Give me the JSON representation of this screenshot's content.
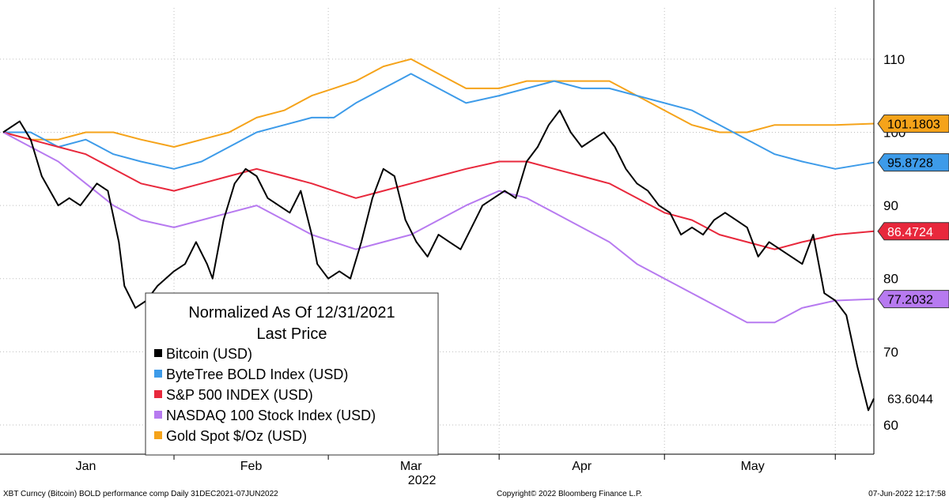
{
  "chart_data": {
    "type": "line",
    "legend": {
      "title_line1": "Normalized As Of 12/31/2021",
      "title_line2": "Last Price",
      "placement": "bottom-left"
    },
    "x_axis": {
      "months": [
        "Jan",
        "Feb",
        "Mar",
        "Apr",
        "May"
      ],
      "year_label": "2022",
      "range": [
        "2021-12-31",
        "2022-06-07"
      ]
    },
    "y_axis": {
      "ticks": [
        60,
        70,
        80,
        90,
        100,
        110
      ],
      "range": [
        56,
        117
      ]
    },
    "grid": true,
    "series": [
      {
        "name": "Bitcoin (USD)",
        "color": "#000000",
        "last_label": "63.6044",
        "points": [
          [
            "2021-12-31",
            100
          ],
          [
            "2022-01-03",
            101.5
          ],
          [
            "2022-01-05",
            99
          ],
          [
            "2022-01-07",
            94
          ],
          [
            "2022-01-10",
            90
          ],
          [
            "2022-01-12",
            91
          ],
          [
            "2022-01-14",
            90
          ],
          [
            "2022-01-17",
            93
          ],
          [
            "2022-01-19",
            92
          ],
          [
            "2022-01-21",
            85
          ],
          [
            "2022-01-22",
            79
          ],
          [
            "2022-01-24",
            76
          ],
          [
            "2022-01-26",
            77
          ],
          [
            "2022-01-28",
            79
          ],
          [
            "2022-01-31",
            81
          ],
          [
            "2022-02-02",
            82
          ],
          [
            "2022-02-04",
            85
          ],
          [
            "2022-02-06",
            82
          ],
          [
            "2022-02-07",
            80
          ],
          [
            "2022-02-09",
            88
          ],
          [
            "2022-02-11",
            93
          ],
          [
            "2022-02-13",
            95
          ],
          [
            "2022-02-15",
            94
          ],
          [
            "2022-02-17",
            91
          ],
          [
            "2022-02-19",
            90
          ],
          [
            "2022-02-21",
            89
          ],
          [
            "2022-02-23",
            92
          ],
          [
            "2022-02-25",
            86
          ],
          [
            "2022-02-26",
            82
          ],
          [
            "2022-02-28",
            80
          ],
          [
            "2022-03-02",
            81
          ],
          [
            "2022-03-04",
            80
          ],
          [
            "2022-03-06",
            85
          ],
          [
            "2022-03-08",
            91
          ],
          [
            "2022-03-10",
            95
          ],
          [
            "2022-03-12",
            94
          ],
          [
            "2022-03-14",
            88
          ],
          [
            "2022-03-16",
            85
          ],
          [
            "2022-03-18",
            83
          ],
          [
            "2022-03-20",
            86
          ],
          [
            "2022-03-22",
            85
          ],
          [
            "2022-03-24",
            84
          ],
          [
            "2022-03-26",
            87
          ],
          [
            "2022-03-28",
            90
          ],
          [
            "2022-03-30",
            91
          ],
          [
            "2022-04-01",
            92
          ],
          [
            "2022-04-03",
            91
          ],
          [
            "2022-04-05",
            96
          ],
          [
            "2022-04-07",
            98
          ],
          [
            "2022-04-09",
            101
          ],
          [
            "2022-04-11",
            103
          ],
          [
            "2022-04-13",
            100
          ],
          [
            "2022-04-15",
            98
          ],
          [
            "2022-04-17",
            99
          ],
          [
            "2022-04-19",
            100
          ],
          [
            "2022-04-21",
            98
          ],
          [
            "2022-04-23",
            95
          ],
          [
            "2022-04-25",
            93
          ],
          [
            "2022-04-27",
            92
          ],
          [
            "2022-04-29",
            90
          ],
          [
            "2022-05-01",
            89
          ],
          [
            "2022-05-03",
            86
          ],
          [
            "2022-05-05",
            87
          ],
          [
            "2022-05-07",
            86
          ],
          [
            "2022-05-09",
            88
          ],
          [
            "2022-05-11",
            89
          ],
          [
            "2022-05-13",
            88
          ],
          [
            "2022-05-15",
            87
          ],
          [
            "2022-05-17",
            83
          ],
          [
            "2022-05-19",
            85
          ],
          [
            "2022-05-21",
            84
          ],
          [
            "2022-05-23",
            83
          ],
          [
            "2022-05-25",
            82
          ],
          [
            "2022-05-27",
            86
          ],
          [
            "2022-05-29",
            78
          ],
          [
            "2022-05-31",
            77
          ],
          [
            "2022-06-02",
            75
          ],
          [
            "2022-06-04",
            68
          ],
          [
            "2022-06-06",
            62
          ],
          [
            "2022-06-07",
            63.6044
          ]
        ]
      },
      {
        "name": "ByteTree BOLD Index (USD)",
        "color": "#3d9be9",
        "last_label": "95.8728",
        "points": [
          [
            "2021-12-31",
            100
          ],
          [
            "2022-01-05",
            100
          ],
          [
            "2022-01-10",
            98
          ],
          [
            "2022-01-15",
            99
          ],
          [
            "2022-01-20",
            97
          ],
          [
            "2022-01-25",
            96
          ],
          [
            "2022-01-31",
            95
          ],
          [
            "2022-02-05",
            96
          ],
          [
            "2022-02-10",
            98
          ],
          [
            "2022-02-15",
            100
          ],
          [
            "2022-02-20",
            101
          ],
          [
            "2022-02-25",
            102
          ],
          [
            "2022-03-01",
            102
          ],
          [
            "2022-03-05",
            104
          ],
          [
            "2022-03-10",
            106
          ],
          [
            "2022-03-15",
            108
          ],
          [
            "2022-03-20",
            106
          ],
          [
            "2022-03-25",
            104
          ],
          [
            "2022-03-31",
            105
          ],
          [
            "2022-04-05",
            106
          ],
          [
            "2022-04-10",
            107
          ],
          [
            "2022-04-15",
            106
          ],
          [
            "2022-04-20",
            106
          ],
          [
            "2022-04-25",
            105
          ],
          [
            "2022-04-30",
            104
          ],
          [
            "2022-05-05",
            103
          ],
          [
            "2022-05-10",
            101
          ],
          [
            "2022-05-15",
            99
          ],
          [
            "2022-05-20",
            97
          ],
          [
            "2022-05-25",
            96
          ],
          [
            "2022-05-31",
            95
          ],
          [
            "2022-06-07",
            95.8728
          ]
        ]
      },
      {
        "name": "S&P 500 INDEX (USD)",
        "color": "#e8283c",
        "last_label": "86.4724",
        "points": [
          [
            "2021-12-31",
            100
          ],
          [
            "2022-01-05",
            99
          ],
          [
            "2022-01-10",
            98
          ],
          [
            "2022-01-15",
            97
          ],
          [
            "2022-01-20",
            95
          ],
          [
            "2022-01-25",
            93
          ],
          [
            "2022-01-31",
            92
          ],
          [
            "2022-02-05",
            93
          ],
          [
            "2022-02-10",
            94
          ],
          [
            "2022-02-15",
            95
          ],
          [
            "2022-02-20",
            94
          ],
          [
            "2022-02-25",
            93
          ],
          [
            "2022-03-01",
            92
          ],
          [
            "2022-03-05",
            91
          ],
          [
            "2022-03-10",
            92
          ],
          [
            "2022-03-15",
            93
          ],
          [
            "2022-03-20",
            94
          ],
          [
            "2022-03-25",
            95
          ],
          [
            "2022-03-31",
            96
          ],
          [
            "2022-04-05",
            96
          ],
          [
            "2022-04-10",
            95
          ],
          [
            "2022-04-15",
            94
          ],
          [
            "2022-04-20",
            93
          ],
          [
            "2022-04-25",
            91
          ],
          [
            "2022-04-30",
            89
          ],
          [
            "2022-05-05",
            88
          ],
          [
            "2022-05-10",
            86
          ],
          [
            "2022-05-15",
            85
          ],
          [
            "2022-05-20",
            84
          ],
          [
            "2022-05-25",
            85
          ],
          [
            "2022-05-31",
            86
          ],
          [
            "2022-06-07",
            86.4724
          ]
        ]
      },
      {
        "name": "NASDAQ 100 Stock Index (USD)",
        "color": "#b77af0",
        "last_label": "77.2032",
        "points": [
          [
            "2021-12-31",
            100
          ],
          [
            "2022-01-05",
            98
          ],
          [
            "2022-01-10",
            96
          ],
          [
            "2022-01-15",
            93
          ],
          [
            "2022-01-20",
            90
          ],
          [
            "2022-01-25",
            88
          ],
          [
            "2022-01-31",
            87
          ],
          [
            "2022-02-05",
            88
          ],
          [
            "2022-02-10",
            89
          ],
          [
            "2022-02-15",
            90
          ],
          [
            "2022-02-20",
            88
          ],
          [
            "2022-02-25",
            86
          ],
          [
            "2022-03-01",
            85
          ],
          [
            "2022-03-05",
            84
          ],
          [
            "2022-03-10",
            85
          ],
          [
            "2022-03-15",
            86
          ],
          [
            "2022-03-20",
            88
          ],
          [
            "2022-03-25",
            90
          ],
          [
            "2022-03-31",
            92
          ],
          [
            "2022-04-05",
            91
          ],
          [
            "2022-04-10",
            89
          ],
          [
            "2022-04-15",
            87
          ],
          [
            "2022-04-20",
            85
          ],
          [
            "2022-04-25",
            82
          ],
          [
            "2022-04-30",
            80
          ],
          [
            "2022-05-05",
            78
          ],
          [
            "2022-05-10",
            76
          ],
          [
            "2022-05-15",
            74
          ],
          [
            "2022-05-20",
            74
          ],
          [
            "2022-05-25",
            76
          ],
          [
            "2022-05-31",
            77
          ],
          [
            "2022-06-07",
            77.2032
          ]
        ]
      },
      {
        "name": "Gold Spot $/Oz (USD)",
        "color": "#f5a31a",
        "last_label": "101.1803",
        "points": [
          [
            "2021-12-31",
            100
          ],
          [
            "2022-01-05",
            99
          ],
          [
            "2022-01-10",
            99
          ],
          [
            "2022-01-15",
            100
          ],
          [
            "2022-01-20",
            100
          ],
          [
            "2022-01-25",
            99
          ],
          [
            "2022-01-31",
            98
          ],
          [
            "2022-02-05",
            99
          ],
          [
            "2022-02-10",
            100
          ],
          [
            "2022-02-15",
            102
          ],
          [
            "2022-02-20",
            103
          ],
          [
            "2022-02-25",
            105
          ],
          [
            "2022-03-01",
            106
          ],
          [
            "2022-03-05",
            107
          ],
          [
            "2022-03-10",
            109
          ],
          [
            "2022-03-15",
            110
          ],
          [
            "2022-03-20",
            108
          ],
          [
            "2022-03-25",
            106
          ],
          [
            "2022-03-31",
            106
          ],
          [
            "2022-04-05",
            107
          ],
          [
            "2022-04-10",
            107
          ],
          [
            "2022-04-15",
            107
          ],
          [
            "2022-04-20",
            107
          ],
          [
            "2022-04-25",
            105
          ],
          [
            "2022-04-30",
            103
          ],
          [
            "2022-05-05",
            101
          ],
          [
            "2022-05-10",
            100
          ],
          [
            "2022-05-15",
            100
          ],
          [
            "2022-05-20",
            101
          ],
          [
            "2022-05-25",
            101
          ],
          [
            "2022-05-31",
            101
          ],
          [
            "2022-06-07",
            101.1803
          ]
        ]
      }
    ]
  },
  "footer": {
    "left": "XBT Curncy (Bitcoin) BOLD performance comp  Daily 31DEC2021-07JUN2022",
    "center": "Copyright© 2022 Bloomberg Finance L.P.",
    "right": "07-Jun-2022 12:17:58"
  }
}
